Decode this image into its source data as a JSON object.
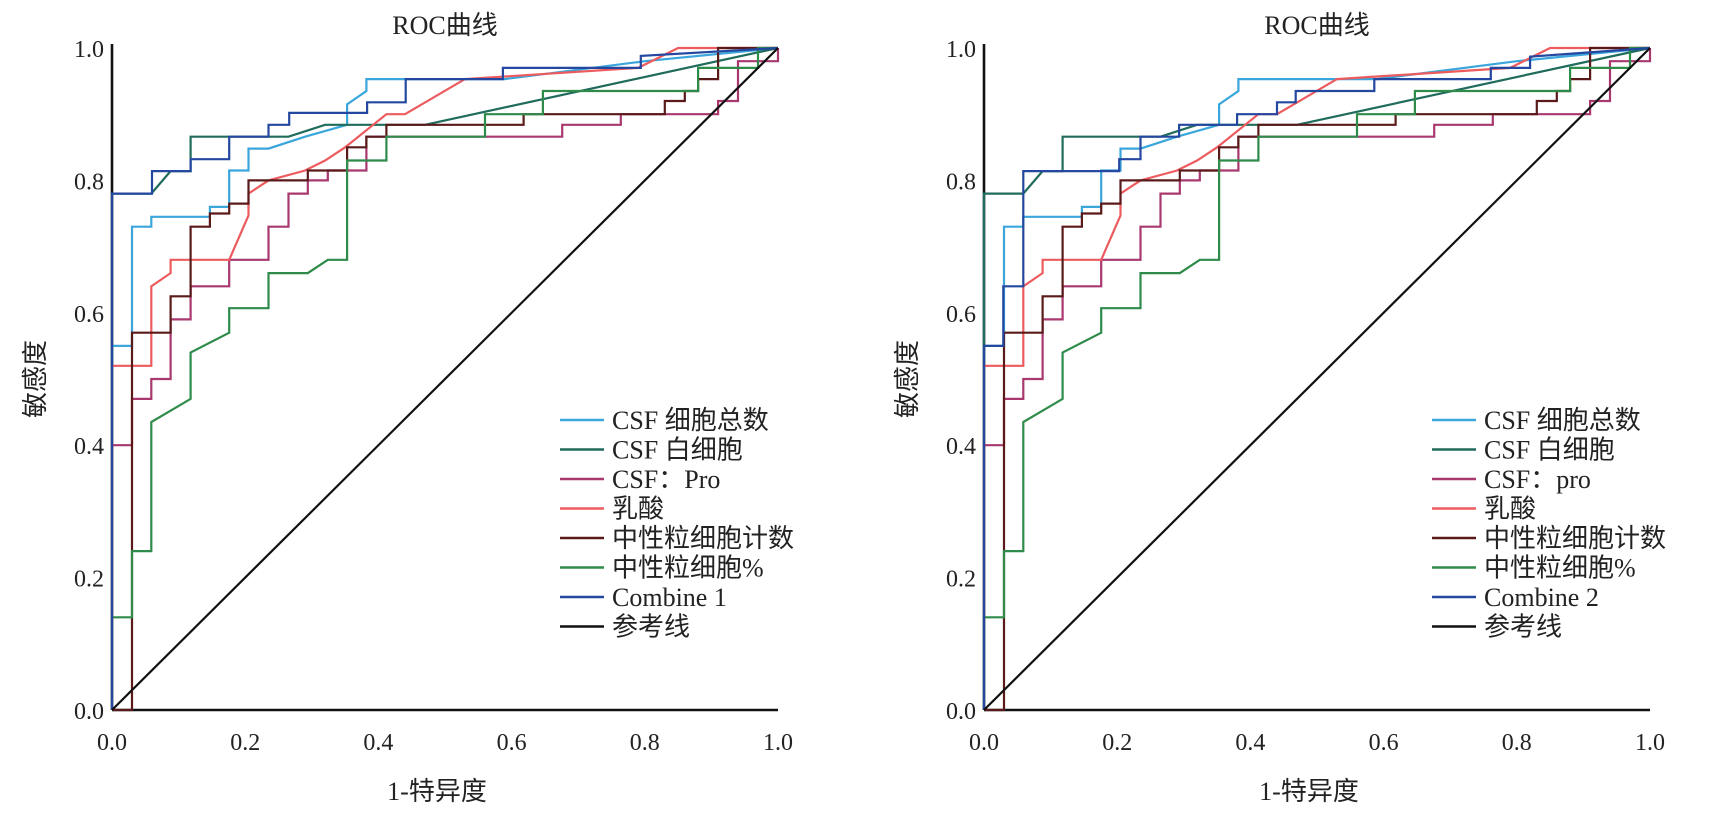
{
  "chart_data": [
    {
      "type": "line",
      "title": "ROC曲线",
      "xlabel": "1-特异度",
      "ylabel": "敏感度",
      "xlim": [
        0,
        1
      ],
      "ylim": [
        0,
        1
      ],
      "x_ticks": [
        "0.0",
        "0.2",
        "0.4",
        "0.6",
        "0.8",
        "1.0"
      ],
      "y_ticks": [
        "0.0",
        "0.2",
        "0.4",
        "0.6",
        "0.8",
        "1.0"
      ],
      "grid": false,
      "legend_position": "bottom-right",
      "series": [
        {
          "name": "CSF 细胞总数",
          "color": "#3aa6dc",
          "x": [
            0,
            0,
            0.03,
            0.03,
            0.059,
            0.059,
            0.147,
            0.147,
            0.176,
            0.176,
            0.205,
            0.205,
            0.235,
            0.29,
            0.353,
            0.353,
            0.382,
            0.382,
            0.59,
            0.8,
            1
          ],
          "y": [
            0,
            0.55,
            0.55,
            0.73,
            0.73,
            0.745,
            0.745,
            0.76,
            0.76,
            0.815,
            0.815,
            0.848,
            0.848,
            0.866,
            0.884,
            0.915,
            0.935,
            0.953,
            0.953,
            0.98,
            1
          ]
        },
        {
          "name": "CSF 白细胞",
          "color": "#1f6b5c",
          "x": [
            0,
            0,
            0.059,
            0.088,
            0.118,
            0.118,
            0.265,
            0.32,
            0.47,
            1
          ],
          "y": [
            0,
            0.78,
            0.78,
            0.814,
            0.814,
            0.866,
            0.866,
            0.884,
            0.884,
            1
          ]
        },
        {
          "name": "CSF：Pro",
          "color": "#a8386e",
          "x": [
            0,
            0,
            0.03,
            0.03,
            0.059,
            0.059,
            0.088,
            0.088,
            0.118,
            0.118,
            0.176,
            0.176,
            0.235,
            0.235,
            0.265,
            0.265,
            0.294,
            0.294,
            0.324,
            0.324,
            0.382,
            0.382,
            0.676,
            0.676,
            0.764,
            0.764,
            0.91,
            0.91,
            0.94,
            0.94,
            1,
            1
          ],
          "y": [
            0,
            0.4,
            0.4,
            0.47,
            0.47,
            0.5,
            0.5,
            0.59,
            0.59,
            0.64,
            0.64,
            0.68,
            0.68,
            0.73,
            0.73,
            0.78,
            0.78,
            0.8,
            0.8,
            0.815,
            0.815,
            0.866,
            0.866,
            0.884,
            0.884,
            0.9,
            0.9,
            0.92,
            0.92,
            0.98,
            0.98,
            1
          ]
        },
        {
          "name": "乳酸",
          "color": "#ec5b5e",
          "x": [
            0,
            0,
            0.059,
            0.059,
            0.088,
            0.088,
            0.176,
            0.205,
            0.205,
            0.235,
            0.29,
            0.32,
            0.35,
            0.412,
            0.44,
            0.53,
            0.79,
            0.85,
            1
          ],
          "y": [
            0,
            0.52,
            0.52,
            0.64,
            0.66,
            0.68,
            0.68,
            0.747,
            0.78,
            0.8,
            0.815,
            0.83,
            0.85,
            0.9,
            0.9,
            0.953,
            0.97,
            1,
            1
          ]
        },
        {
          "name": "中性粒细胞计数",
          "color": "#5a1a1a",
          "x": [
            0,
            0.03,
            0.03,
            0.088,
            0.088,
            0.118,
            0.118,
            0.147,
            0.147,
            0.176,
            0.176,
            0.205,
            0.205,
            0.294,
            0.294,
            0.353,
            0.353,
            0.382,
            0.382,
            0.412,
            0.412,
            0.618,
            0.618,
            0.83,
            0.83,
            0.86,
            0.86,
            0.88,
            0.88,
            0.91,
            0.91,
            1
          ],
          "y": [
            0,
            0,
            0.57,
            0.57,
            0.625,
            0.625,
            0.73,
            0.73,
            0.75,
            0.75,
            0.765,
            0.765,
            0.8,
            0.8,
            0.815,
            0.815,
            0.85,
            0.85,
            0.866,
            0.866,
            0.884,
            0.884,
            0.9,
            0.9,
            0.92,
            0.92,
            0.935,
            0.935,
            0.953,
            0.953,
            1,
            1
          ]
        },
        {
          "name": "中性粒细胞%",
          "color": "#2e8b4a",
          "x": [
            0,
            0,
            0.03,
            0.03,
            0.059,
            0.059,
            0.118,
            0.118,
            0.176,
            0.176,
            0.235,
            0.235,
            0.294,
            0.324,
            0.353,
            0.353,
            0.412,
            0.412,
            0.56,
            0.56,
            0.647,
            0.647,
            0.88,
            0.88,
            0.97,
            0.97,
            1
          ],
          "y": [
            0,
            0.14,
            0.14,
            0.24,
            0.24,
            0.435,
            0.47,
            0.54,
            0.57,
            0.607,
            0.607,
            0.66,
            0.66,
            0.68,
            0.68,
            0.83,
            0.83,
            0.866,
            0.866,
            0.9,
            0.9,
            0.935,
            0.935,
            0.97,
            0.97,
            1,
            1
          ]
        },
        {
          "name": "Combine 1",
          "color": "#2447a0",
          "x": [
            0,
            0,
            0.06,
            0.06,
            0.118,
            0.118,
            0.176,
            0.176,
            0.235,
            0.235,
            0.266,
            0.266,
            0.383,
            0.383,
            0.441,
            0.441,
            0.587,
            0.587,
            0.794,
            0.794,
            1
          ],
          "y": [
            0,
            0.78,
            0.78,
            0.814,
            0.814,
            0.832,
            0.832,
            0.866,
            0.866,
            0.884,
            0.884,
            0.902,
            0.902,
            0.918,
            0.918,
            0.953,
            0.953,
            0.97,
            0.97,
            0.988,
            1
          ]
        },
        {
          "name": "参考线",
          "color": "#111111",
          "x": [
            0,
            1
          ],
          "y": [
            0,
            1
          ]
        }
      ]
    },
    {
      "type": "line",
      "title": "ROC曲线",
      "xlabel": "1-特异度",
      "ylabel": "敏感度",
      "xlim": [
        0,
        1
      ],
      "ylim": [
        0,
        1
      ],
      "x_ticks": [
        "0.0",
        "0.2",
        "0.4",
        "0.6",
        "0.8",
        "1.0"
      ],
      "y_ticks": [
        "0.0",
        "0.2",
        "0.4",
        "0.6",
        "0.8",
        "1.0"
      ],
      "grid": false,
      "legend_position": "bottom-right",
      "series": [
        {
          "name": "CSF 细胞总数",
          "color": "#3aa6dc",
          "x": [
            0,
            0,
            0.03,
            0.03,
            0.059,
            0.059,
            0.147,
            0.147,
            0.176,
            0.176,
            0.205,
            0.205,
            0.235,
            0.29,
            0.353,
            0.353,
            0.382,
            0.382,
            0.59,
            0.8,
            1
          ],
          "y": [
            0,
            0.55,
            0.55,
            0.73,
            0.73,
            0.745,
            0.745,
            0.76,
            0.76,
            0.815,
            0.815,
            0.848,
            0.848,
            0.866,
            0.884,
            0.915,
            0.935,
            0.953,
            0.953,
            0.98,
            1
          ]
        },
        {
          "name": "CSF 白细胞",
          "color": "#1f6b5c",
          "x": [
            0,
            0,
            0.059,
            0.088,
            0.118,
            0.118,
            0.265,
            0.32,
            0.47,
            1
          ],
          "y": [
            0,
            0.78,
            0.78,
            0.814,
            0.814,
            0.866,
            0.866,
            0.884,
            0.884,
            1
          ]
        },
        {
          "name": "CSF：pro",
          "color": "#a8386e",
          "x": [
            0,
            0,
            0.03,
            0.03,
            0.059,
            0.059,
            0.088,
            0.088,
            0.118,
            0.118,
            0.176,
            0.176,
            0.235,
            0.235,
            0.265,
            0.265,
            0.294,
            0.294,
            0.324,
            0.324,
            0.382,
            0.382,
            0.676,
            0.676,
            0.764,
            0.764,
            0.91,
            0.91,
            0.94,
            0.94,
            1,
            1
          ],
          "y": [
            0,
            0.4,
            0.4,
            0.47,
            0.47,
            0.5,
            0.5,
            0.59,
            0.59,
            0.64,
            0.64,
            0.68,
            0.68,
            0.73,
            0.73,
            0.78,
            0.78,
            0.8,
            0.8,
            0.815,
            0.815,
            0.866,
            0.866,
            0.884,
            0.884,
            0.9,
            0.9,
            0.92,
            0.92,
            0.98,
            0.98,
            1
          ]
        },
        {
          "name": "乳酸",
          "color": "#ec5b5e",
          "x": [
            0,
            0,
            0.059,
            0.059,
            0.088,
            0.088,
            0.176,
            0.205,
            0.205,
            0.235,
            0.29,
            0.32,
            0.35,
            0.412,
            0.44,
            0.53,
            0.79,
            0.85,
            1
          ],
          "y": [
            0,
            0.52,
            0.52,
            0.64,
            0.66,
            0.68,
            0.68,
            0.747,
            0.78,
            0.8,
            0.815,
            0.83,
            0.85,
            0.9,
            0.9,
            0.953,
            0.97,
            1,
            1
          ]
        },
        {
          "name": "中性粒细胞计数",
          "color": "#5a1a1a",
          "x": [
            0,
            0.03,
            0.03,
            0.088,
            0.088,
            0.118,
            0.118,
            0.147,
            0.147,
            0.176,
            0.176,
            0.205,
            0.205,
            0.294,
            0.294,
            0.353,
            0.353,
            0.382,
            0.382,
            0.412,
            0.412,
            0.618,
            0.618,
            0.83,
            0.83,
            0.86,
            0.86,
            0.88,
            0.88,
            0.91,
            0.91,
            1
          ],
          "y": [
            0,
            0,
            0.57,
            0.57,
            0.625,
            0.625,
            0.73,
            0.73,
            0.75,
            0.75,
            0.765,
            0.765,
            0.8,
            0.8,
            0.815,
            0.815,
            0.85,
            0.85,
            0.866,
            0.866,
            0.884,
            0.884,
            0.9,
            0.9,
            0.92,
            0.92,
            0.935,
            0.935,
            0.953,
            0.953,
            1,
            1
          ]
        },
        {
          "name": "中性粒细胞%",
          "color": "#2e8b4a",
          "x": [
            0,
            0,
            0.03,
            0.03,
            0.059,
            0.059,
            0.118,
            0.118,
            0.176,
            0.176,
            0.235,
            0.235,
            0.294,
            0.324,
            0.353,
            0.353,
            0.412,
            0.412,
            0.56,
            0.56,
            0.647,
            0.647,
            0.88,
            0.88,
            0.97,
            0.97,
            1
          ],
          "y": [
            0,
            0.14,
            0.14,
            0.24,
            0.24,
            0.435,
            0.47,
            0.54,
            0.57,
            0.607,
            0.607,
            0.66,
            0.66,
            0.68,
            0.68,
            0.83,
            0.83,
            0.866,
            0.866,
            0.9,
            0.9,
            0.935,
            0.935,
            0.97,
            0.97,
            1,
            1
          ]
        },
        {
          "name": "Combine 2",
          "color": "#2447a0",
          "x": [
            0,
            0,
            0.029,
            0.029,
            0.059,
            0.059,
            0.203,
            0.203,
            0.235,
            0.235,
            0.293,
            0.293,
            0.38,
            0.38,
            0.44,
            0.44,
            0.468,
            0.468,
            0.586,
            0.586,
            0.761,
            0.761,
            0.82,
            0.82,
            1
          ],
          "y": [
            0,
            0.55,
            0.55,
            0.64,
            0.64,
            0.814,
            0.814,
            0.832,
            0.832,
            0.866,
            0.866,
            0.884,
            0.884,
            0.9,
            0.9,
            0.918,
            0.918,
            0.935,
            0.935,
            0.953,
            0.953,
            0.97,
            0.97,
            0.987,
            1
          ]
        },
        {
          "name": "参考线",
          "color": "#111111",
          "x": [
            0,
            1
          ],
          "y": [
            0,
            1
          ]
        }
      ]
    }
  ]
}
